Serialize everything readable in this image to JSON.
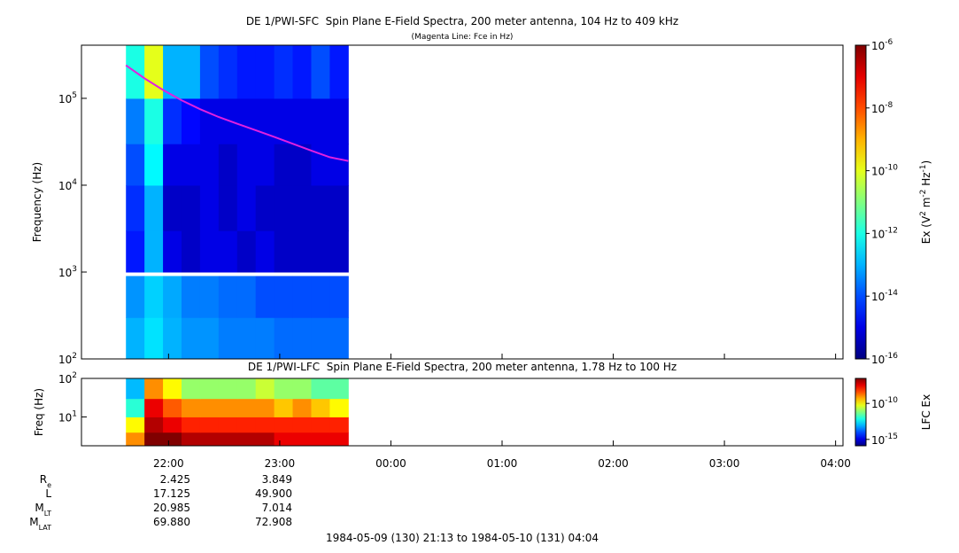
{
  "chart_data": [
    {
      "type": "spectrogram",
      "title": "DE 1/PWI-SFC  Spin Plane E-Field Spectra, 200 meter antenna, 104 Hz to 409 kHz",
      "subtitle": "(Magenta Line: Fce in Hz)",
      "ylabel": "Frequency (Hz)",
      "xlim": [
        "1984-05-09 21:13",
        "1984-05-10 04:04"
      ],
      "xticks": [
        {
          "value": "1984-05-09 22:00",
          "label": "22:00"
        },
        {
          "value": "1984-05-09 23:00",
          "label": "23:00"
        },
        {
          "value": "1984-05-10 00:00",
          "label": "00:00"
        },
        {
          "value": "1984-05-10 01:00",
          "label": "01:00"
        },
        {
          "value": "1984-05-10 02:00",
          "label": "02:00"
        },
        {
          "value": "1984-05-10 03:00",
          "label": "03:00"
        },
        {
          "value": "1984-05-10 04:00",
          "label": "04:00"
        }
      ],
      "ylim": [
        100,
        409000
      ],
      "log_y": true,
      "yticks": [
        {
          "value": 100,
          "label": "10",
          "exponent": "2"
        },
        {
          "value": 1000,
          "label": "10",
          "exponent": "3"
        },
        {
          "value": 10000,
          "label": "10",
          "exponent": "4"
        },
        {
          "value": 100000,
          "label": "10",
          "exponent": "5"
        }
      ],
      "time_bins": [
        "1984-05-09 21:37",
        "1984-05-09 21:47",
        "1984-05-09 21:57",
        "1984-05-09 22:07",
        "1984-05-09 22:17",
        "1984-05-09 22:27",
        "1984-05-09 22:37",
        "1984-05-09 22:47",
        "1984-05-09 22:57",
        "1984-05-09 23:07",
        "1984-05-09 23:17",
        "1984-05-09 23:27",
        "1984-05-09 23:37"
      ],
      "freq_bins": [
        100,
        300,
        900,
        1000,
        3000,
        10000,
        30000,
        100000,
        409000
      ],
      "z": [
        [
          1e-13,
          3e-13,
          1e-13,
          5e-14,
          5e-14,
          3e-14,
          3e-14,
          3e-14,
          2e-14,
          2e-14,
          2e-14,
          2e-14
        ],
        [
          5e-14,
          2e-13,
          8e-14,
          3e-14,
          3e-14,
          2e-14,
          2e-14,
          1e-14,
          1e-14,
          1e-14,
          1e-14,
          1e-14
        ],
        [
          null,
          null,
          null,
          null,
          null,
          null,
          null,
          null,
          null,
          null,
          null,
          null
        ],
        [
          3e-15,
          1e-13,
          1e-15,
          5e-16,
          1e-15,
          1e-15,
          5e-16,
          1e-15,
          5e-16,
          5e-16,
          5e-16,
          5e-16
        ],
        [
          5e-15,
          1e-13,
          5e-16,
          5e-16,
          1e-15,
          5e-16,
          1e-15,
          5e-16,
          5e-16,
          5e-16,
          5e-16,
          5e-16
        ],
        [
          1e-14,
          5e-13,
          1e-15,
          1e-15,
          1e-15,
          5e-16,
          1e-15,
          1e-15,
          5e-16,
          5e-16,
          1e-15,
          1e-15
        ],
        [
          3e-14,
          1e-12,
          5e-15,
          2e-15,
          1e-15,
          1e-15,
          1e-15,
          1e-15,
          1e-15,
          1e-15,
          1e-15,
          1e-15
        ],
        [
          1e-12,
          1e-10,
          1e-13,
          1e-13,
          1e-14,
          5e-15,
          3e-15,
          3e-15,
          5e-15,
          3e-15,
          1e-14,
          3e-15
        ]
      ],
      "colormap": "jet",
      "zlim": [
        1e-16,
        1e-06
      ],
      "zticks": [
        {
          "value": 1e-06,
          "label": "10",
          "exponent": "-6"
        },
        {
          "value": 1e-08,
          "label": "10",
          "exponent": "-8"
        },
        {
          "value": 1e-10,
          "label": "10",
          "exponent": "-10"
        },
        {
          "value": 1e-12,
          "label": "10",
          "exponent": "-12"
        },
        {
          "value": 1e-14,
          "label": "10",
          "exponent": "-14"
        },
        {
          "value": 1e-16,
          "label": "10",
          "exponent": "-16"
        }
      ],
      "zlabel": [
        {
          "text": "Ex (V"
        },
        {
          "sup": "2"
        },
        {
          "text": " m"
        },
        {
          "sup": "-2"
        },
        {
          "text": " Hz"
        },
        {
          "sup": "-1"
        },
        {
          "text": ")"
        }
      ],
      "line": {
        "name": "Fce",
        "color": "#e020e0",
        "x": [
          "1984-05-09 21:37",
          "1984-05-09 21:47",
          "1984-05-09 21:57",
          "1984-05-09 22:07",
          "1984-05-09 22:17",
          "1984-05-09 22:27",
          "1984-05-09 22:37",
          "1984-05-09 22:47",
          "1984-05-09 22:57",
          "1984-05-09 23:07",
          "1984-05-09 23:17",
          "1984-05-09 23:27",
          "1984-05-09 23:37"
        ],
        "values": [
          240000,
          170000,
          125000,
          95000,
          75000,
          61000,
          51000,
          43000,
          36000,
          30000,
          25000,
          21000,
          19000
        ]
      }
    },
    {
      "type": "spectrogram",
      "title": "DE 1/PWI-LFC  Spin Plane E-Field Spectra, 200 meter antenna, 1.78 Hz to 100 Hz",
      "ylabel": "Freq (Hz)",
      "xlim": [
        "1984-05-09 21:13",
        "1984-05-10 04:04"
      ],
      "ylim": [
        1.78,
        100
      ],
      "log_y": true,
      "yticks": [
        {
          "value": 10,
          "label": "10",
          "exponent": "1"
        },
        {
          "value": 100,
          "label": "10",
          "exponent": "2"
        }
      ],
      "time_bins": [
        "1984-05-09 21:37",
        "1984-05-09 21:47",
        "1984-05-09 21:57",
        "1984-05-09 22:07",
        "1984-05-09 22:17",
        "1984-05-09 22:27",
        "1984-05-09 22:37",
        "1984-05-09 22:47",
        "1984-05-09 22:57",
        "1984-05-09 23:07",
        "1984-05-09 23:17",
        "1984-05-09 23:27",
        "1984-05-09 23:37"
      ],
      "freq_bins": [
        1.78,
        4,
        10,
        30,
        100
      ],
      "z": [
        [
          1e-09,
          3e-07,
          3e-07,
          1e-07,
          1e-07,
          1e-07,
          1e-07,
          1e-07,
          3e-08,
          3e-08,
          3e-08,
          3e-08
        ],
        [
          1e-10,
          1e-07,
          3e-08,
          1e-08,
          1e-08,
          1e-08,
          1e-08,
          1e-08,
          1e-08,
          1e-08,
          1e-08,
          1e-08
        ],
        [
          1e-12,
          3e-08,
          3e-09,
          1e-09,
          1e-09,
          1e-09,
          1e-09,
          1e-09,
          3e-10,
          1e-09,
          3e-10,
          1e-10
        ],
        [
          1e-13,
          1e-09,
          1e-10,
          1e-11,
          1e-11,
          1e-11,
          1e-11,
          3e-11,
          1e-11,
          1e-11,
          3e-12,
          3e-12
        ]
      ],
      "colormap": "jet",
      "zlim": [
        1.3e-16,
        3e-07
      ],
      "zticks": [
        {
          "value": 1e-10,
          "label": "10",
          "exponent": "-10"
        },
        {
          "value": 1e-15,
          "label": "10",
          "exponent": "-15"
        }
      ],
      "zlabel": [
        {
          "text": "LFC Ex"
        }
      ]
    }
  ],
  "orbit_table": {
    "rows": [
      {
        "label": "R",
        "sub": "e",
        "values": [
          "2.425",
          "3.849"
        ]
      },
      {
        "label": "L",
        "sub": "",
        "values": [
          "17.125",
          "49.900"
        ]
      },
      {
        "label": "M",
        "sub": "LT",
        "values": [
          "20.985",
          "7.014"
        ]
      },
      {
        "label": "M",
        "sub": "LAT",
        "values": [
          "69.880",
          "72.908"
        ]
      }
    ]
  },
  "footer": "1984-05-09 (130) 21:13 to 1984-05-10 (131) 04:04"
}
